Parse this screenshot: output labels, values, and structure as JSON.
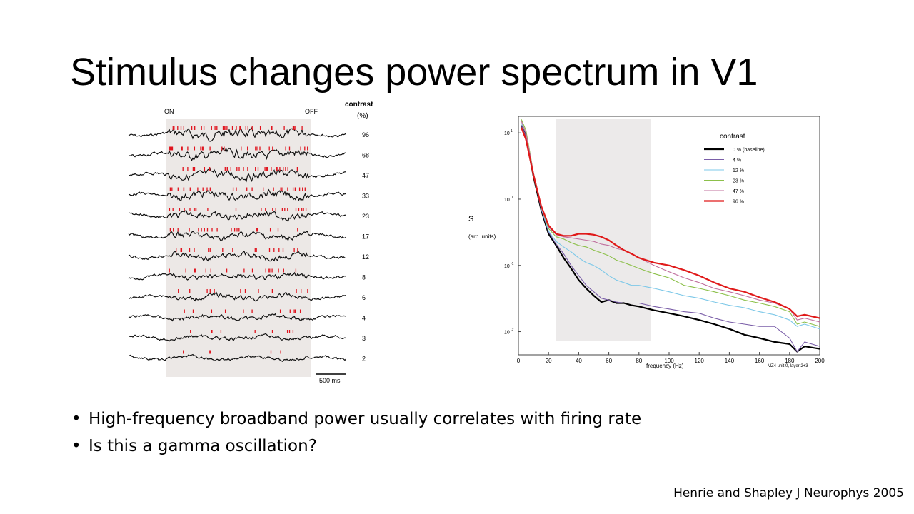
{
  "slide": {
    "title": "Stimulus changes power spectrum in V1",
    "bullets": [
      "High-frequency broadband power usually correlates with firing rate",
      "Is this a gamma oscillation?"
    ],
    "bullet_glyph": "•",
    "citation": "Henrie and Shapley J Neurophys 2005"
  },
  "left_figure": {
    "on_label": "ON",
    "off_label": "OFF",
    "header_line1": "contrast",
    "header_line2": "(%)",
    "trace_labels": [
      "96",
      "68",
      "47",
      "33",
      "23",
      "17",
      "12",
      "8",
      "6",
      "4",
      "3",
      "2"
    ],
    "scale_label": "500 ms",
    "spike_color": "#e0141e",
    "stim_shade_color": "#ece8e6"
  },
  "chart_data": {
    "type": "line",
    "xlabel": "frequency (Hz)",
    "ylabel": "S",
    "ylabel_units": "(arb. units)",
    "xlim": [
      0,
      200
    ],
    "x_ticks": [
      "0",
      "20",
      "40",
      "60",
      "80",
      "100",
      "120",
      "140",
      "160",
      "180",
      "200"
    ],
    "y_ticks": [
      {
        "base": "10",
        "exp": "1",
        "value": 10
      },
      {
        "base": "10",
        "exp": "0",
        "value": 1
      },
      {
        "base": "10",
        "exp": "-1",
        "value": 0.1
      },
      {
        "base": "10",
        "exp": "-2",
        "value": 0.01
      }
    ],
    "y_scale": "log",
    "shaded_band": [
      25,
      88
    ],
    "legend_title": "contrast",
    "legend_position": "top-right",
    "footnote": "MZ4 unit 0, layer 2+3",
    "x": [
      2,
      5,
      10,
      15,
      20,
      25,
      30,
      35,
      40,
      45,
      50,
      55,
      60,
      65,
      70,
      75,
      80,
      90,
      100,
      110,
      120,
      130,
      140,
      150,
      160,
      170,
      180,
      185,
      190,
      200
    ],
    "series": [
      {
        "name": "0 % (baseline)",
        "color": "#000000",
        "values": [
          13,
          9,
          2.2,
          0.7,
          0.3,
          0.2,
          0.13,
          0.09,
          0.06,
          0.045,
          0.035,
          0.028,
          0.03,
          0.027,
          0.027,
          0.025,
          0.024,
          0.021,
          0.019,
          0.017,
          0.015,
          0.013,
          0.011,
          0.009,
          0.008,
          0.007,
          0.0065,
          0.005,
          0.006,
          0.0055
        ]
      },
      {
        "name": "4 %",
        "color": "#7a5ea8",
        "values": [
          13,
          9,
          2.3,
          0.72,
          0.32,
          0.21,
          0.15,
          0.1,
          0.07,
          0.05,
          0.04,
          0.032,
          0.03,
          0.028,
          0.027,
          0.027,
          0.027,
          0.024,
          0.022,
          0.02,
          0.019,
          0.016,
          0.014,
          0.013,
          0.012,
          0.012,
          0.008,
          0.005,
          0.007,
          0.006
        ]
      },
      {
        "name": "12 %",
        "color": "#7dc8e8",
        "values": [
          14,
          10,
          2.4,
          0.75,
          0.33,
          0.23,
          0.19,
          0.16,
          0.13,
          0.11,
          0.1,
          0.085,
          0.07,
          0.06,
          0.055,
          0.05,
          0.05,
          0.045,
          0.04,
          0.035,
          0.032,
          0.028,
          0.025,
          0.023,
          0.02,
          0.018,
          0.015,
          0.012,
          0.013,
          0.011
        ]
      },
      {
        "name": "23 %",
        "color": "#8cc04a",
        "values": [
          16,
          11,
          2.5,
          0.8,
          0.36,
          0.27,
          0.25,
          0.22,
          0.2,
          0.19,
          0.17,
          0.155,
          0.14,
          0.12,
          0.11,
          0.1,
          0.09,
          0.075,
          0.065,
          0.05,
          0.045,
          0.04,
          0.035,
          0.03,
          0.027,
          0.024,
          0.02,
          0.013,
          0.014,
          0.012
        ]
      },
      {
        "name": "47 %",
        "color": "#c0709e",
        "values": [
          15,
          10,
          2.5,
          0.8,
          0.38,
          0.29,
          0.27,
          0.26,
          0.25,
          0.24,
          0.23,
          0.21,
          0.2,
          0.18,
          0.17,
          0.15,
          0.13,
          0.1,
          0.08,
          0.065,
          0.055,
          0.045,
          0.04,
          0.035,
          0.03,
          0.027,
          0.022,
          0.015,
          0.016,
          0.014
        ]
      },
      {
        "name": "96 %",
        "color": "#e01a1a",
        "values": [
          12,
          8,
          2.3,
          0.8,
          0.4,
          0.3,
          0.28,
          0.28,
          0.3,
          0.3,
          0.29,
          0.27,
          0.24,
          0.2,
          0.17,
          0.15,
          0.13,
          0.11,
          0.1,
          0.085,
          0.07,
          0.055,
          0.045,
          0.04,
          0.033,
          0.028,
          0.022,
          0.017,
          0.018,
          0.016
        ]
      }
    ]
  }
}
